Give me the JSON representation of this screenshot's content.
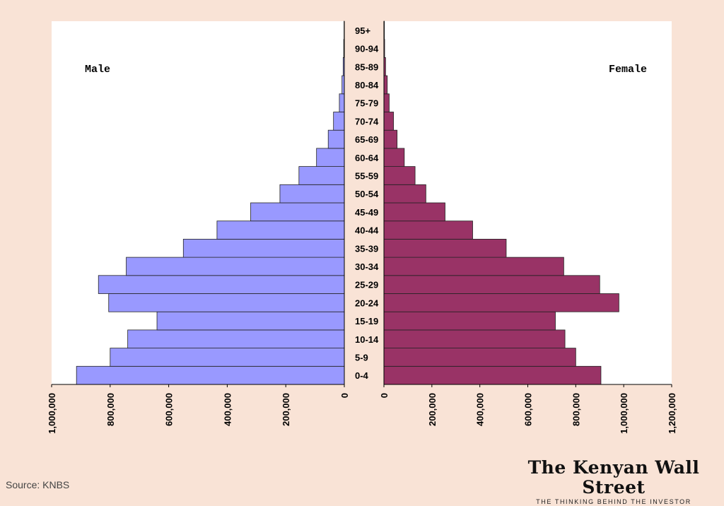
{
  "chart_data": {
    "type": "bar",
    "subtype": "population-pyramid",
    "categories": [
      "0-4",
      "5-9",
      "10-14",
      "15-19",
      "20-24",
      "25-29",
      "30-34",
      "35-39",
      "40-44",
      "45-49",
      "50-54",
      "55-59",
      "60-64",
      "65-69",
      "70-74",
      "75-79",
      "80-84",
      "85-89",
      "90-94",
      "95+"
    ],
    "series": [
      {
        "name": "Male",
        "color": "#9999ff",
        "values": [
          915000,
          800000,
          740000,
          640000,
          805000,
          840000,
          745000,
          550000,
          435000,
          320000,
          220000,
          155000,
          95000,
          55000,
          37000,
          17000,
          8000,
          4000,
          2000,
          1000
        ]
      },
      {
        "name": "Female",
        "color": "#993366",
        "values": [
          905000,
          800000,
          755000,
          715000,
          980000,
          900000,
          750000,
          510000,
          370000,
          255000,
          175000,
          130000,
          85000,
          55000,
          40000,
          22000,
          14000,
          7000,
          3000,
          2000
        ]
      }
    ],
    "male_axis": {
      "range": [
        0,
        1000000
      ],
      "ticks": [
        "1,000,000",
        "800,000",
        "600,000",
        "400,000",
        "200,000",
        "0"
      ]
    },
    "female_axis": {
      "range": [
        0,
        1200000
      ],
      "ticks": [
        "0",
        "200,000",
        "400,000",
        "600,000",
        "800,000",
        "1,000,000",
        "1,200,000"
      ]
    },
    "legend": {
      "male": "Male",
      "female": "Female"
    }
  },
  "footer": {
    "source": "Source: KNBS",
    "brand": "The Kenyan Wall Street",
    "tagline": "THE THINKING BEHIND THE INVESTOR"
  }
}
